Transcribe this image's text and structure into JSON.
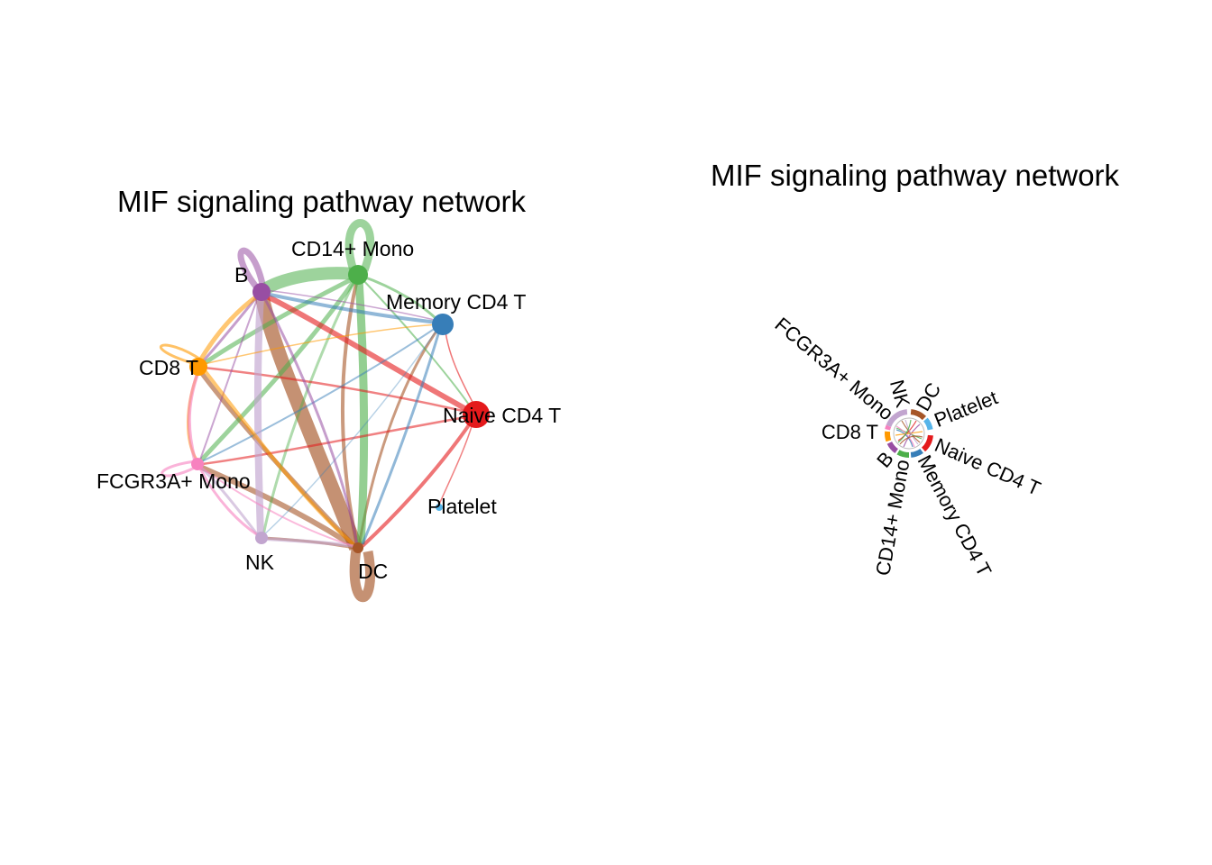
{
  "panels": {
    "circle": {
      "title": "MIF signaling pathway network"
    },
    "chord": {
      "title": "MIF signaling pathway network"
    }
  },
  "nodes": [
    {
      "id": "b",
      "label": "B",
      "color": "#984EA3"
    },
    {
      "id": "cd14",
      "label": "CD14+ Mono",
      "color": "#4DAF4A"
    },
    {
      "id": "memory",
      "label": "Memory CD4 T",
      "color": "#377EB8"
    },
    {
      "id": "naive",
      "label": "Naive CD4 T",
      "color": "#E41A1C"
    },
    {
      "id": "platelet",
      "label": "Platelet",
      "color": "#56B4E9"
    },
    {
      "id": "dc",
      "label": "DC",
      "color": "#A65628"
    },
    {
      "id": "nk",
      "label": "NK",
      "color": "#C2A5CF"
    },
    {
      "id": "fcgr",
      "label": "FCGR3A+ Mono",
      "color": "#F781BF"
    },
    {
      "id": "cd8",
      "label": "CD8 T",
      "color": "#FF9900"
    }
  ],
  "chord_labels": {
    "fcgr": "FCGR3A+ Mono",
    "nk": "NK",
    "dc": "DC",
    "platelet": "Platelet",
    "cd8": "CD8 T",
    "naive": "Naive CD4 T",
    "b": "B",
    "cd14": "CD14+ Mono",
    "memory": "Memory CD4 T"
  }
}
